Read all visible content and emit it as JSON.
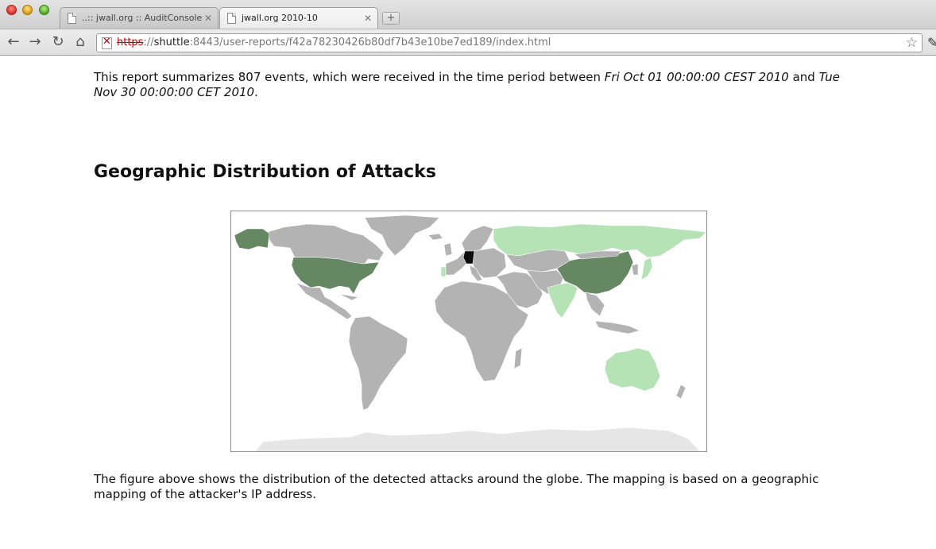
{
  "browser": {
    "tabs": [
      {
        "title": "..:: jwall.org :: AuditConsole",
        "active": false
      },
      {
        "title": "jwall.org 2010-10",
        "active": true
      }
    ],
    "url": {
      "scheme": "https",
      "separator": "://",
      "host": "shuttle",
      "rest": ":8443/user-reports/f42a78230426b80df7b43e10be7ed189/index.html"
    }
  },
  "report": {
    "intro_prefix": "This report summarizes 807 events, which were received in the time period between ",
    "start": "Fri Oct 01 00:00:00 CEST 2010",
    "and": " and ",
    "end": "Tue Nov 30 00:00:00 CET 2010",
    "intro_suffix": ".",
    "heading": "Geographic Distribution of Attacks",
    "caption": "The figure above shows the distribution of the detected attacks around the globe. The mapping is based on a geographic mapping of the attacker's IP address."
  },
  "map": {
    "colors": {
      "none": "#b3b3b3",
      "low": "#b5e3b5",
      "medium": "#658863",
      "high": "#0c0c0c",
      "antarctica": "#e6e6e6",
      "border": "#ffffff"
    },
    "countries": [
      {
        "name": "Germany",
        "level": "high"
      },
      {
        "name": "United States",
        "level": "medium"
      },
      {
        "name": "Alaska",
        "level": "medium"
      },
      {
        "name": "China",
        "level": "medium"
      },
      {
        "name": "Russia",
        "level": "low"
      },
      {
        "name": "India",
        "level": "low"
      },
      {
        "name": "Australia",
        "level": "low"
      },
      {
        "name": "Portugal",
        "level": "low"
      }
    ]
  }
}
